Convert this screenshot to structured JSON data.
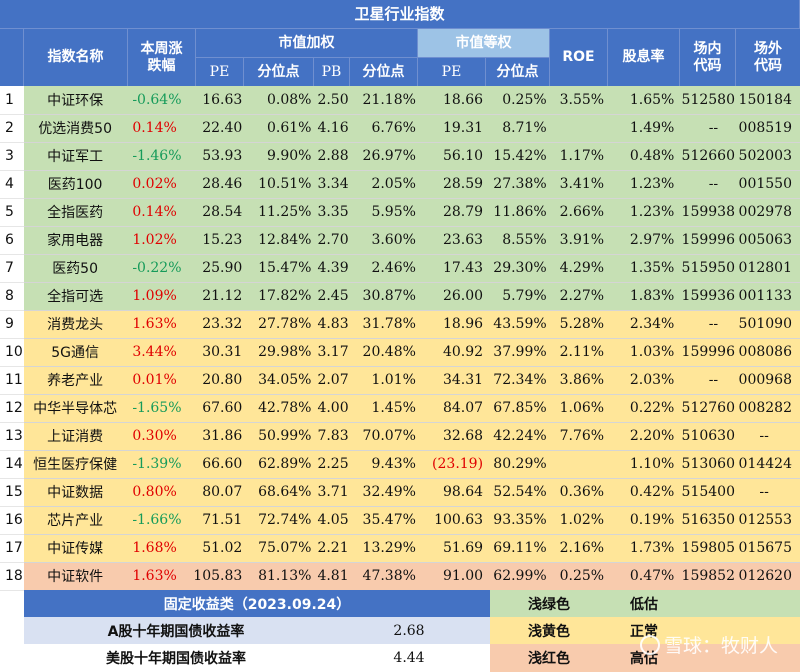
{
  "title": "卫星行业指数",
  "headers": {
    "name": "指数名称",
    "weekly_change": "本周涨跌幅",
    "cap_weighted": "市值加权",
    "equal_weighted": "市值等权",
    "pe": "PE",
    "percentile": "分位点",
    "pb": "PB",
    "roe": "ROE",
    "dividend": "股息率",
    "onsite_code": "场内代码",
    "offsite_code": "场外代码"
  },
  "rows": [
    {
      "idx": "1",
      "name": "中证环保",
      "chg": "-0.64%",
      "pe": "16.63",
      "pct": "0.08%",
      "pb": "2.50",
      "pbpct": "21.18%",
      "epe": "18.66",
      "epct": "0.25%",
      "roe": "3.55%",
      "div": "1.65%",
      "on": "512580",
      "off": "150184",
      "band": "g"
    },
    {
      "idx": "2",
      "name": "优选消费50",
      "chg": "0.14%",
      "pe": "22.40",
      "pct": "0.61%",
      "pb": "4.16",
      "pbpct": "6.76%",
      "epe": "19.31",
      "epct": "8.71%",
      "roe": "",
      "div": "1.49%",
      "on": "--",
      "off": "008519",
      "band": "g"
    },
    {
      "idx": "3",
      "name": "中证军工",
      "chg": "-1.46%",
      "pe": "53.93",
      "pct": "9.90%",
      "pb": "2.88",
      "pbpct": "26.97%",
      "epe": "56.10",
      "epct": "15.42%",
      "roe": "1.17%",
      "div": "0.48%",
      "on": "512660",
      "off": "502003",
      "band": "g"
    },
    {
      "idx": "4",
      "name": "医药100",
      "chg": "0.02%",
      "pe": "28.46",
      "pct": "10.51%",
      "pb": "3.34",
      "pbpct": "2.05%",
      "epe": "28.59",
      "epct": "27.38%",
      "roe": "3.41%",
      "div": "1.23%",
      "on": "--",
      "off": "001550",
      "band": "g"
    },
    {
      "idx": "5",
      "name": "全指医药",
      "chg": "0.14%",
      "pe": "28.54",
      "pct": "11.25%",
      "pb": "3.35",
      "pbpct": "5.95%",
      "epe": "28.79",
      "epct": "11.86%",
      "roe": "2.66%",
      "div": "1.23%",
      "on": "159938",
      "off": "002978",
      "band": "g"
    },
    {
      "idx": "6",
      "name": "家用电器",
      "chg": "1.02%",
      "pe": "15.23",
      "pct": "12.84%",
      "pb": "2.70",
      "pbpct": "3.60%",
      "epe": "23.63",
      "epct": "8.55%",
      "roe": "3.91%",
      "div": "2.97%",
      "on": "159996",
      "off": "005063",
      "band": "g"
    },
    {
      "idx": "7",
      "name": "医药50",
      "chg": "-0.22%",
      "pe": "25.90",
      "pct": "15.47%",
      "pb": "4.39",
      "pbpct": "2.46%",
      "epe": "17.43",
      "epct": "29.30%",
      "roe": "4.29%",
      "div": "1.35%",
      "on": "515950",
      "off": "012801",
      "band": "g"
    },
    {
      "idx": "8",
      "name": "全指可选",
      "chg": "1.09%",
      "pe": "21.12",
      "pct": "17.82%",
      "pb": "2.45",
      "pbpct": "30.87%",
      "epe": "26.00",
      "epct": "5.79%",
      "roe": "2.27%",
      "div": "1.83%",
      "on": "159936",
      "off": "001133",
      "band": "g"
    },
    {
      "idx": "9",
      "name": "消费龙头",
      "chg": "1.63%",
      "pe": "23.32",
      "pct": "27.78%",
      "pb": "4.83",
      "pbpct": "31.78%",
      "epe": "18.96",
      "epct": "43.59%",
      "roe": "5.28%",
      "div": "2.34%",
      "on": "--",
      "off": "501090",
      "band": "y"
    },
    {
      "idx": "10",
      "name": "5G通信",
      "chg": "3.44%",
      "pe": "30.31",
      "pct": "29.98%",
      "pb": "3.17",
      "pbpct": "20.48%",
      "epe": "40.92",
      "epct": "37.99%",
      "roe": "2.11%",
      "div": "1.03%",
      "on": "159996",
      "off": "008086",
      "band": "y"
    },
    {
      "idx": "11",
      "name": "养老产业",
      "chg": "0.01%",
      "pe": "20.80",
      "pct": "34.05%",
      "pb": "2.07",
      "pbpct": "1.01%",
      "epe": "34.31",
      "epct": "72.34%",
      "roe": "3.86%",
      "div": "2.03%",
      "on": "--",
      "off": "000968",
      "band": "y"
    },
    {
      "idx": "12",
      "name": "中华半导体芯",
      "chg": "-1.65%",
      "pe": "67.60",
      "pct": "42.78%",
      "pb": "4.00",
      "pbpct": "1.45%",
      "epe": "84.07",
      "epct": "67.85%",
      "roe": "1.06%",
      "div": "0.22%",
      "on": "512760",
      "off": "008282",
      "band": "y"
    },
    {
      "idx": "13",
      "name": "上证消费",
      "chg": "0.30%",
      "pe": "31.86",
      "pct": "50.99%",
      "pb": "7.83",
      "pbpct": "70.07%",
      "epe": "32.68",
      "epct": "42.24%",
      "roe": "7.76%",
      "div": "2.20%",
      "on": "510630",
      "off": "--",
      "band": "y"
    },
    {
      "idx": "14",
      "name": "恒生医疗保健",
      "chg": "-1.39%",
      "pe": "66.60",
      "pct": "62.89%",
      "pb": "2.25",
      "pbpct": "9.43%",
      "epe": "(23.19)",
      "epct": "80.29%",
      "roe": "",
      "div": "1.10%",
      "on": "513060",
      "off": "014424",
      "band": "y"
    },
    {
      "idx": "15",
      "name": "中证数据",
      "chg": "0.80%",
      "pe": "80.07",
      "pct": "68.64%",
      "pb": "3.71",
      "pbpct": "32.49%",
      "epe": "98.64",
      "epct": "52.54%",
      "roe": "0.36%",
      "div": "0.42%",
      "on": "515400",
      "off": "--",
      "band": "y"
    },
    {
      "idx": "16",
      "name": "芯片产业",
      "chg": "-1.66%",
      "pe": "71.51",
      "pct": "72.74%",
      "pb": "4.05",
      "pbpct": "35.47%",
      "epe": "100.63",
      "epct": "93.35%",
      "roe": "1.02%",
      "div": "0.19%",
      "on": "516350",
      "off": "012553",
      "band": "y"
    },
    {
      "idx": "17",
      "name": "中证传媒",
      "chg": "1.68%",
      "pe": "51.02",
      "pct": "75.07%",
      "pb": "2.21",
      "pbpct": "13.29%",
      "epe": "51.69",
      "epct": "69.11%",
      "roe": "2.16%",
      "div": "1.73%",
      "on": "159805",
      "off": "015675",
      "band": "y"
    },
    {
      "idx": "18",
      "name": "中证软件",
      "chg": "1.63%",
      "pe": "105.83",
      "pct": "81.13%",
      "pb": "4.81",
      "pbpct": "47.38%",
      "epe": "91.00",
      "epct": "62.99%",
      "roe": "0.25%",
      "div": "0.47%",
      "on": "159852",
      "off": "012620",
      "band": "r"
    }
  ],
  "footer": {
    "fixed_income_title": "固定收益类（2023.09.24）",
    "a_share_label": "A股十年期国债收益率",
    "a_share_value": "2.68",
    "us_label": "美股十年期国债收益率",
    "us_value": "4.44",
    "legend": [
      {
        "name": "浅绿色",
        "meaning": "低估",
        "color": "#c6e0b4"
      },
      {
        "name": "浅黄色",
        "meaning": "正常",
        "color": "#ffe699"
      },
      {
        "name": "浅红色",
        "meaning": "高估",
        "color": "#f8cbad"
      }
    ]
  },
  "watermark": "雪球：牧财人",
  "colors": {
    "header": "#4472c4",
    "header_light": "#9dc3e6",
    "green": "#c6e0b4",
    "yellow": "#ffe699",
    "red": "#f8cbad",
    "blue_row": "#d9e1f2"
  }
}
